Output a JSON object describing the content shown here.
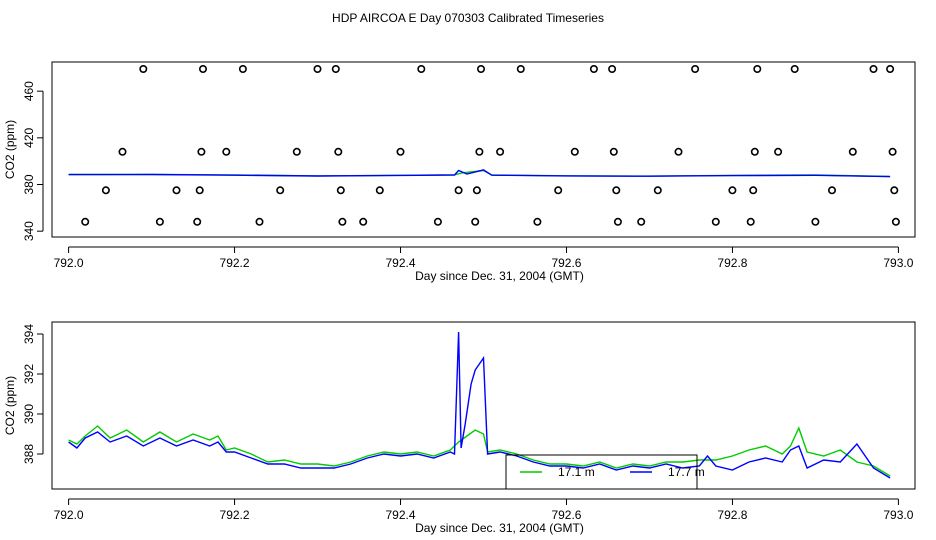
{
  "title": "HDP AIRCOA E  Day 070303  Calibrated Timeseries",
  "chart_data": [
    {
      "type": "scatter+line",
      "xlabel": "Day since Dec. 31, 2004 (GMT)",
      "ylabel": "CO2 (ppm)",
      "xlim": [
        791.98,
        793.02
      ],
      "ylim": [
        335,
        485
      ],
      "xticks": [
        "792.0",
        "792.2",
        "792.4",
        "792.6",
        "792.8",
        "793.0"
      ],
      "yticks": [
        "340",
        "380",
        "420",
        "460"
      ],
      "series": [
        {
          "color": "#000000",
          "marker": "open-circle",
          "points": [
            [
              792.02,
              348
            ],
            [
              792.045,
              375
            ],
            [
              792.065,
              408
            ],
            [
              792.09,
              479
            ],
            [
              792.11,
              348
            ],
            [
              792.13,
              375
            ],
            [
              792.155,
              348
            ],
            [
              792.158,
              375
            ],
            [
              792.16,
              408
            ],
            [
              792.162,
              479
            ],
            [
              792.19,
              408
            ],
            [
              792.21,
              479
            ],
            [
              792.23,
              348
            ],
            [
              792.255,
              375
            ],
            [
              792.275,
              408
            ],
            [
              792.3,
              479
            ],
            [
              792.322,
              479
            ],
            [
              792.325,
              408
            ],
            [
              792.328,
              375
            ],
            [
              792.33,
              348
            ],
            [
              792.355,
              348
            ],
            [
              792.375,
              375
            ],
            [
              792.4,
              408
            ],
            [
              792.425,
              479
            ],
            [
              792.445,
              348
            ],
            [
              792.47,
              375
            ],
            [
              792.49,
              348
            ],
            [
              792.492,
              375
            ],
            [
              792.495,
              408
            ],
            [
              792.497,
              479
            ],
            [
              792.52,
              408
            ],
            [
              792.545,
              479
            ],
            [
              792.565,
              348
            ],
            [
              792.59,
              375
            ],
            [
              792.61,
              408
            ],
            [
              792.633,
              479
            ],
            [
              792.655,
              479
            ],
            [
              792.657,
              408
            ],
            [
              792.66,
              375
            ],
            [
              792.662,
              348
            ],
            [
              792.69,
              348
            ],
            [
              792.71,
              375
            ],
            [
              792.735,
              408
            ],
            [
              792.755,
              479
            ],
            [
              792.78,
              348
            ],
            [
              792.8,
              375
            ],
            [
              792.822,
              348
            ],
            [
              792.825,
              375
            ],
            [
              792.827,
              408
            ],
            [
              792.83,
              479
            ],
            [
              792.855,
              408
            ],
            [
              792.875,
              479
            ],
            [
              792.9,
              348
            ],
            [
              792.92,
              375
            ],
            [
              792.945,
              408
            ],
            [
              792.97,
              479
            ],
            [
              792.99,
              479
            ],
            [
              792.993,
              408
            ],
            [
              792.995,
              375
            ],
            [
              792.997,
              348
            ]
          ]
        },
        {
          "color": "#00cc00",
          "line_points": [
            [
              792.0,
              388.6
            ],
            [
              792.1,
              388.7
            ],
            [
              792.2,
              388.2
            ],
            [
              792.3,
              387.4
            ],
            [
              792.4,
              387.9
            ],
            [
              792.465,
              388.3
            ],
            [
              792.475,
              390
            ],
            [
              792.5,
              392
            ],
            [
              792.51,
              388.1
            ],
            [
              792.6,
              387.5
            ],
            [
              792.7,
              387.2
            ],
            [
              792.8,
              387.8
            ],
            [
              792.9,
              388.1
            ],
            [
              792.99,
              386.9
            ]
          ]
        },
        {
          "color": "#0000ff",
          "line_points": [
            [
              792.0,
              388.5
            ],
            [
              792.1,
              388.6
            ],
            [
              792.2,
              388.0
            ],
            [
              792.3,
              387.3
            ],
            [
              792.4,
              387.8
            ],
            [
              792.465,
              388.1
            ],
            [
              792.47,
              392
            ],
            [
              792.48,
              389
            ],
            [
              792.5,
              392.5
            ],
            [
              792.51,
              388.0
            ],
            [
              792.6,
              387.4
            ],
            [
              792.7,
              387.1
            ],
            [
              792.8,
              387.6
            ],
            [
              792.9,
              387.9
            ],
            [
              792.99,
              386.8
            ]
          ]
        }
      ]
    },
    {
      "type": "line",
      "xlabel": "Day since Dec. 31, 2004 (GMT)",
      "ylabel": "CO2 (ppm)",
      "xlim": [
        791.98,
        793.02
      ],
      "ylim": [
        386.25,
        394.6
      ],
      "xticks": [
        "792.0",
        "792.2",
        "792.4",
        "792.6",
        "792.8",
        "793.0"
      ],
      "yticks": [
        "388",
        "390",
        "392",
        "394"
      ],
      "legend": {
        "position": "bottom-center",
        "entries": [
          {
            "label": "17.1 m",
            "color": "#00cc00"
          },
          {
            "label": "17.7 m",
            "color": "#0000ff"
          }
        ]
      },
      "series": [
        {
          "name": "17.1 m",
          "color": "#00cc00",
          "points": [
            [
              792.0,
              388.7
            ],
            [
              792.01,
              388.5
            ],
            [
              792.02,
              388.9
            ],
            [
              792.035,
              389.4
            ],
            [
              792.05,
              388.8
            ],
            [
              792.07,
              389.2
            ],
            [
              792.09,
              388.6
            ],
            [
              792.11,
              389.1
            ],
            [
              792.13,
              388.6
            ],
            [
              792.15,
              389.0
            ],
            [
              792.17,
              388.7
            ],
            [
              792.18,
              388.9
            ],
            [
              792.19,
              388.2
            ],
            [
              792.2,
              388.3
            ],
            [
              792.22,
              388.0
            ],
            [
              792.24,
              387.6
            ],
            [
              792.26,
              387.7
            ],
            [
              792.28,
              387.5
            ],
            [
              792.3,
              387.5
            ],
            [
              792.32,
              387.4
            ],
            [
              792.34,
              387.6
            ],
            [
              792.36,
              387.9
            ],
            [
              792.38,
              388.1
            ],
            [
              792.4,
              388.0
            ],
            [
              792.42,
              388.1
            ],
            [
              792.44,
              387.9
            ],
            [
              792.46,
              388.2
            ],
            [
              792.47,
              388.6
            ],
            [
              792.48,
              388.9
            ],
            [
              792.49,
              389.2
            ],
            [
              792.5,
              389.0
            ],
            [
              792.505,
              388.1
            ],
            [
              792.52,
              388.2
            ],
            [
              792.54,
              388.0
            ],
            [
              792.56,
              387.7
            ],
            [
              792.58,
              387.5
            ],
            [
              792.6,
              387.5
            ],
            [
              792.62,
              387.4
            ],
            [
              792.64,
              387.6
            ],
            [
              792.66,
              387.3
            ],
            [
              792.68,
              387.5
            ],
            [
              792.7,
              387.4
            ],
            [
              792.72,
              387.6
            ],
            [
              792.74,
              387.6
            ],
            [
              792.76,
              387.7
            ],
            [
              792.78,
              387.7
            ],
            [
              792.8,
              387.9
            ],
            [
              792.82,
              388.2
            ],
            [
              792.84,
              388.4
            ],
            [
              792.86,
              388.0
            ],
            [
              792.87,
              388.4
            ],
            [
              792.88,
              389.3
            ],
            [
              792.89,
              388.1
            ],
            [
              792.91,
              387.9
            ],
            [
              792.93,
              388.2
            ],
            [
              792.95,
              387.6
            ],
            [
              792.97,
              387.4
            ],
            [
              792.99,
              386.9
            ]
          ]
        },
        {
          "name": "17.7 m",
          "color": "#0000ff",
          "points": [
            [
              792.0,
              388.6
            ],
            [
              792.01,
              388.3
            ],
            [
              792.02,
              388.8
            ],
            [
              792.035,
              389.1
            ],
            [
              792.05,
              388.6
            ],
            [
              792.07,
              388.9
            ],
            [
              792.09,
              388.4
            ],
            [
              792.11,
              388.8
            ],
            [
              792.13,
              388.4
            ],
            [
              792.15,
              388.7
            ],
            [
              792.17,
              388.4
            ],
            [
              792.18,
              388.6
            ],
            [
              792.19,
              388.1
            ],
            [
              792.2,
              388.1
            ],
            [
              792.22,
              387.8
            ],
            [
              792.24,
              387.5
            ],
            [
              792.26,
              387.5
            ],
            [
              792.28,
              387.3
            ],
            [
              792.3,
              387.3
            ],
            [
              792.32,
              387.3
            ],
            [
              792.34,
              387.5
            ],
            [
              792.36,
              387.8
            ],
            [
              792.38,
              388.0
            ],
            [
              792.4,
              387.9
            ],
            [
              792.42,
              388.0
            ],
            [
              792.44,
              387.8
            ],
            [
              792.46,
              388.1
            ],
            [
              792.465,
              388.0
            ],
            [
              792.47,
              394.1
            ],
            [
              792.473,
              388.3
            ],
            [
              792.478,
              389.5
            ],
            [
              792.485,
              391.5
            ],
            [
              792.49,
              392.2
            ],
            [
              792.5,
              392.8
            ],
            [
              792.505,
              388.0
            ],
            [
              792.52,
              388.1
            ],
            [
              792.54,
              387.9
            ],
            [
              792.56,
              387.6
            ],
            [
              792.58,
              387.4
            ],
            [
              792.6,
              387.4
            ],
            [
              792.62,
              387.3
            ],
            [
              792.64,
              387.5
            ],
            [
              792.66,
              387.2
            ],
            [
              792.68,
              387.4
            ],
            [
              792.7,
              387.3
            ],
            [
              792.72,
              387.5
            ],
            [
              792.74,
              387.3
            ],
            [
              792.76,
              387.4
            ],
            [
              792.77,
              387.9
            ],
            [
              792.78,
              387.4
            ],
            [
              792.8,
              387.2
            ],
            [
              792.82,
              387.6
            ],
            [
              792.84,
              387.8
            ],
            [
              792.86,
              387.6
            ],
            [
              792.87,
              388.2
            ],
            [
              792.88,
              388.4
            ],
            [
              792.89,
              387.3
            ],
            [
              792.91,
              387.7
            ],
            [
              792.93,
              387.6
            ],
            [
              792.95,
              388.5
            ],
            [
              792.97,
              387.3
            ],
            [
              792.99,
              386.8
            ]
          ]
        }
      ]
    }
  ]
}
